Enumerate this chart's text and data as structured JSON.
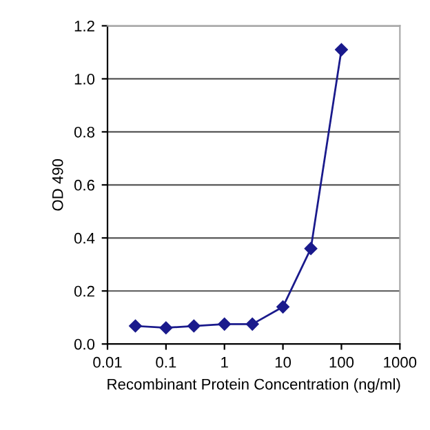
{
  "chart_data": {
    "type": "line",
    "xlabel": "Recombinant Protein Concentration (ng/ml)",
    "ylabel": "OD 490",
    "x": [
      0.03,
      0.1,
      0.3,
      1,
      3,
      10,
      30,
      100
    ],
    "series": [
      {
        "color": "#1a1a8c",
        "values": [
          0.068,
          0.061,
          0.068,
          0.075,
          0.075,
          0.14,
          0.36,
          1.11
        ]
      }
    ],
    "log": "x",
    "xlim": [
      0.01,
      1000
    ],
    "xticks": [
      0.01,
      0.1,
      1,
      10,
      100,
      1000
    ],
    "ylim": [
      0,
      1.2
    ],
    "yticks": [
      {
        "value": 0,
        "label": "0.0"
      },
      {
        "value": 0.2,
        "label": "0.2"
      },
      {
        "value": 0.4,
        "label": "0.4"
      },
      {
        "value": 0.6,
        "label": "0.6"
      },
      {
        "value": 0.8,
        "label": "0.8"
      },
      {
        "value": 1.0,
        "label": "1.0"
      },
      {
        "value": 1.2,
        "label": "1.2"
      }
    ],
    "grid": "y",
    "marker": "diamond",
    "line_style": "solid"
  }
}
